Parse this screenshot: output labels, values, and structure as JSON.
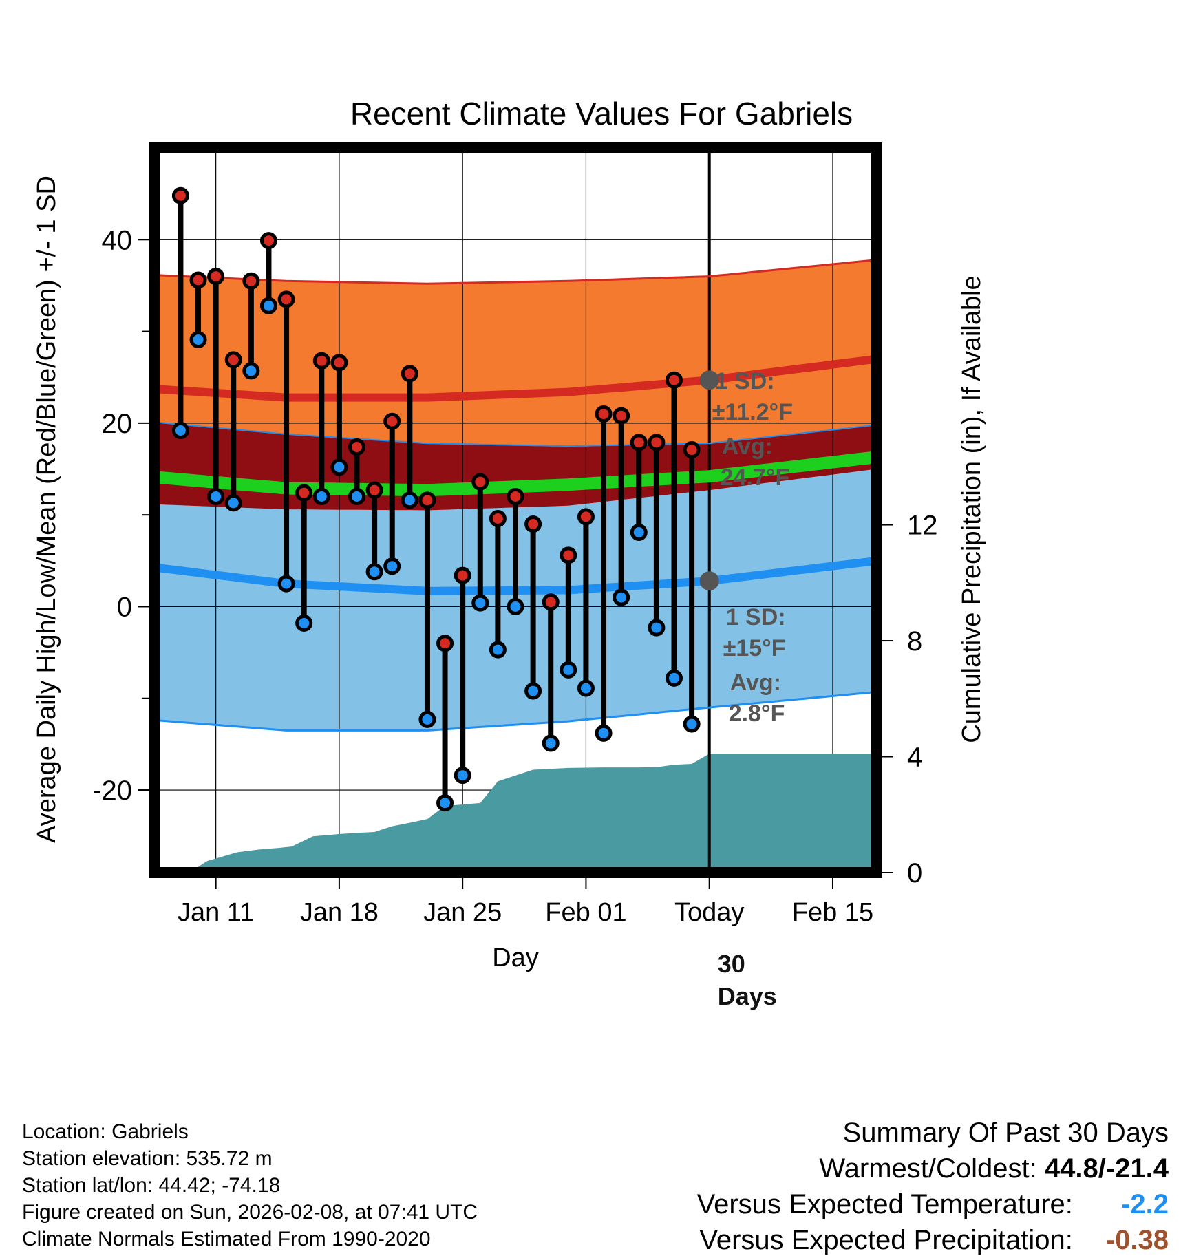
{
  "title": "Recent Climate Values For Gabriels",
  "chart_data": {
    "type": "daily-range",
    "title": "Recent Climate Values For Gabriels",
    "xlabel": "Day",
    "ylabel_left": "Average Daily High/Low/Mean (Red/Blue/Green) +/- 1 SD",
    "ylabel_right": "Cumulative Precipitation (in), If Available",
    "x_range_days": [
      -31.5,
      9.5
    ],
    "ylim_left": [
      -29,
      50
    ],
    "ylim_right": [
      0,
      25
    ],
    "left_ticks": [
      -20,
      0,
      20,
      40
    ],
    "left_minor_ticks": [
      -10,
      10,
      30
    ],
    "right_ticks": [
      0,
      4,
      8,
      12
    ],
    "x_ticks": [
      {
        "day": -28,
        "label": "Jan 11"
      },
      {
        "day": -21,
        "label": "Jan 18"
      },
      {
        "day": -14,
        "label": "Jan 25"
      },
      {
        "day": -7,
        "label": "Feb 01"
      },
      {
        "day": 0,
        "label": "Today"
      },
      {
        "day": 7,
        "label": "Feb 15"
      }
    ],
    "daily_high": [
      44.8,
      35.6,
      36.0,
      26.9,
      35.5,
      39.9,
      33.5,
      12.4,
      26.8,
      26.6,
      17.4,
      12.7,
      20.2,
      25.4,
      11.6,
      -4.0,
      3.4,
      13.6,
      9.6,
      12.0,
      9.0,
      0.5,
      5.6,
      9.8,
      21.0,
      20.8,
      17.9,
      17.9,
      24.7,
      17.1
    ],
    "daily_low": [
      19.2,
      29.1,
      12.0,
      11.3,
      25.7,
      32.8,
      2.5,
      -1.8,
      12.0,
      15.2,
      12.0,
      3.8,
      4.4,
      11.6,
      -12.3,
      -21.4,
      -18.4,
      0.4,
      -4.7,
      0.0,
      -9.2,
      -14.9,
      -6.9,
      -8.9,
      -13.8,
      1.0,
      8.1,
      -2.3,
      -7.8,
      -12.8
    ],
    "normals": {
      "days": [
        -32,
        -24,
        -16,
        -8,
        0,
        9.5
      ],
      "high_avg": [
        23.8,
        22.8,
        22.8,
        23.4,
        24.7,
        27.0
      ],
      "high_sd_upper": [
        36.2,
        35.5,
        35.2,
        35.5,
        36.0,
        37.8
      ],
      "high_sd_lower": [
        20.2,
        18.8,
        17.8,
        17.5,
        17.8,
        19.8
      ],
      "mean": [
        14.2,
        12.9,
        12.7,
        13.3,
        14.2,
        16.3
      ],
      "low_avg": [
        4.4,
        2.5,
        1.7,
        1.8,
        2.8,
        5.0
      ],
      "low_sd_upper": [
        11.2,
        10.6,
        10.5,
        11.0,
        12.7,
        15.0
      ],
      "low_sd_lower": [
        -12.3,
        -13.5,
        -13.5,
        -12.5,
        -11.0,
        -9.3
      ]
    },
    "cumulative_precip": {
      "days": [
        -29.5,
        -28.5,
        -26.8,
        -25.5,
        -24.5,
        -23.7,
        -22.5,
        -21.0,
        -20.0,
        -19.0,
        -18.0,
        -17.0,
        -16.0,
        -15.0,
        -14.0,
        -13.0,
        -12.0,
        -10.0,
        -8.0,
        -6.0,
        -4.0,
        -3.0,
        -2.0,
        -1.0,
        0.0,
        9.5
      ],
      "values": [
        0.0,
        0.4,
        0.7,
        0.8,
        0.85,
        0.9,
        1.25,
        1.33,
        1.37,
        1.4,
        1.6,
        1.72,
        1.85,
        2.3,
        2.35,
        2.4,
        3.15,
        3.55,
        3.61,
        3.63,
        3.63,
        3.64,
        3.72,
        3.75,
        4.1,
        4.1
      ]
    },
    "annotations": {
      "high_sd_line1": "1 SD:",
      "high_sd_line2": "±11.2°F",
      "high_avg_line1": "Avg:",
      "high_avg_line2": "24.7°F",
      "low_sd_line1": "1 SD:",
      "low_sd_line2": "±15°F",
      "low_avg_line1": "Avg:",
      "low_avg_line2": "2.8°F",
      "window_line1": "30",
      "window_line2": "Days"
    },
    "colors": {
      "high_band": "#f37a2e",
      "high_line": "#d42a22",
      "mean_band": "#8f0e14",
      "mean_line": "#1ed01e",
      "low_band": "#83c2e6",
      "low_line": "#1f8ff2",
      "precip": "#4a9aa2",
      "high_dot": "#d42a22",
      "low_dot": "#1f8ff2",
      "annotation": "#555555"
    }
  },
  "footer": {
    "location": "Location: Gabriels",
    "elevation": "Station elevation: 535.72 m",
    "latlon": "Station lat/lon: 44.42; -74.18",
    "created": "Figure created on Sun, 2026-02-08, at 07:41 UTC",
    "normals": "Climate Normals Estimated From 1990-2020"
  },
  "summary": {
    "heading": "Summary Of Past 30 Days",
    "warm_cold_label": "Warmest/Coldest:",
    "warm_cold_value": "44.8/-21.4",
    "temp_label": "Versus Expected Temperature:",
    "temp_value": "-2.2",
    "temp_color": "#1f8ff2",
    "precip_label": "Versus Expected Precipitation:",
    "precip_value": "-0.38",
    "precip_color": "#a0522d"
  }
}
